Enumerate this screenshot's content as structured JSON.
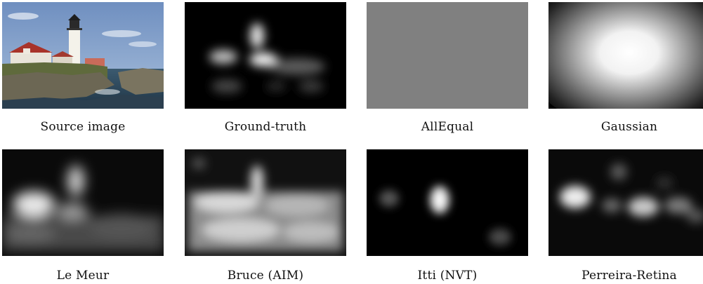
{
  "figure": {
    "panels": [
      {
        "id": "source",
        "label": "Source image"
      },
      {
        "id": "ground-truth",
        "label": "Ground-truth"
      },
      {
        "id": "allequal",
        "label": "AllEqual"
      },
      {
        "id": "gaussian",
        "label": "Gaussian"
      },
      {
        "id": "le-meur",
        "label": "Le Meur"
      },
      {
        "id": "bruce",
        "label": "Bruce (AIM)"
      },
      {
        "id": "itti",
        "label": "Itti (NVT)"
      },
      {
        "id": "perreira",
        "label": "Perreira-Retina"
      }
    ]
  },
  "colors": {
    "background": "#ffffff",
    "allequal_gray": "#808080",
    "sky": "#7f9fc8",
    "roof": "#b33a2e",
    "rock": "#6a6552",
    "sea": "#2f4a5e"
  }
}
